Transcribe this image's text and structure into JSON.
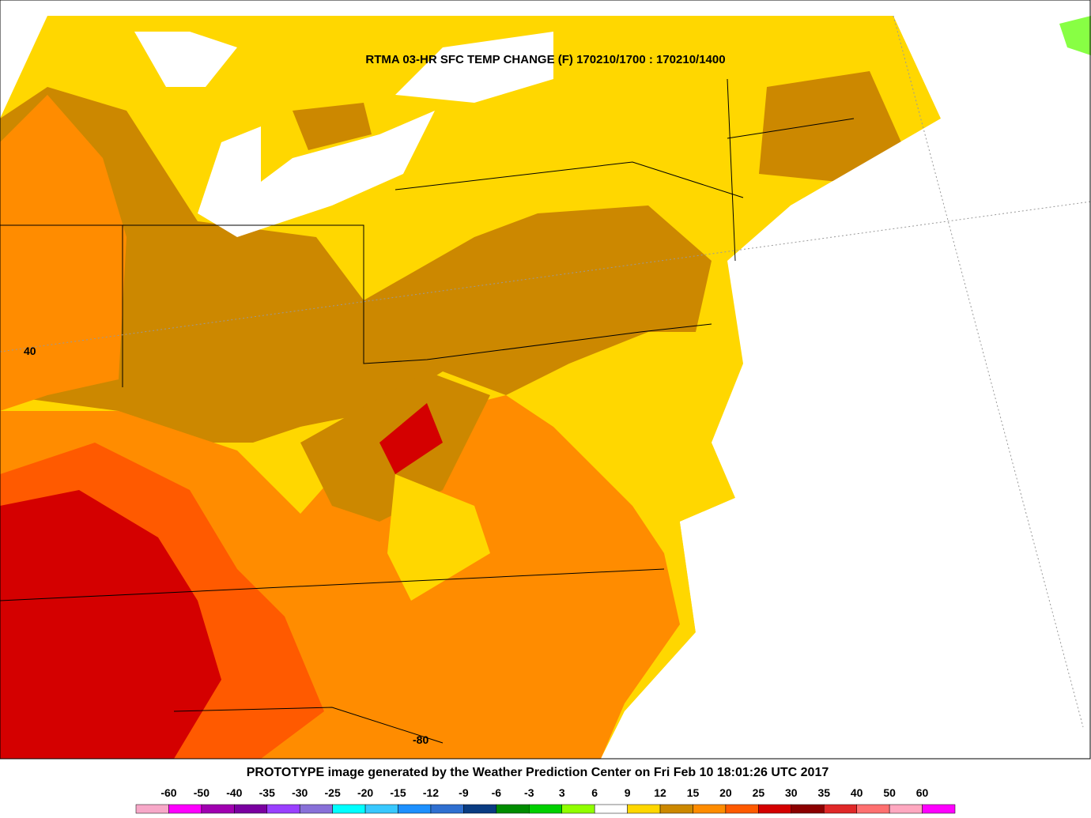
{
  "title": "RTMA 03-HR SFC TEMP CHANGE (F) 170210/1700 : 170210/1400",
  "footer": "PROTOTYPE image generated by the Weather Prediction Center on Fri Feb 10 18:01:26 UTC 2017",
  "map_labels": {
    "lat": "40",
    "lon": "-80"
  },
  "legend": {
    "labels": [
      "-60",
      "-50",
      "-40",
      "-35",
      "-30",
      "-25",
      "-20",
      "-15",
      "-12",
      "-9",
      "-6",
      "-3",
      "3",
      "6",
      "9",
      "12",
      "15",
      "20",
      "25",
      "30",
      "35",
      "40",
      "50",
      "60"
    ],
    "colors": [
      "#f7a8c8",
      "#ff00ff",
      "#a000b0",
      "#7a00a0",
      "#9a40ff",
      "#8870d8",
      "#00ffff",
      "#38c8ff",
      "#1e90ff",
      "#2f6fd0",
      "#0a3c82",
      "#008c00",
      "#00d000",
      "#90ff00",
      "#ffffff",
      "#ffd700",
      "#cc8800",
      "#ff8c00",
      "#ff5a00",
      "#d40000",
      "#8b0000",
      "#e02828",
      "#ff7070",
      "#ffa8c0",
      "#ff00ff"
    ]
  }
}
